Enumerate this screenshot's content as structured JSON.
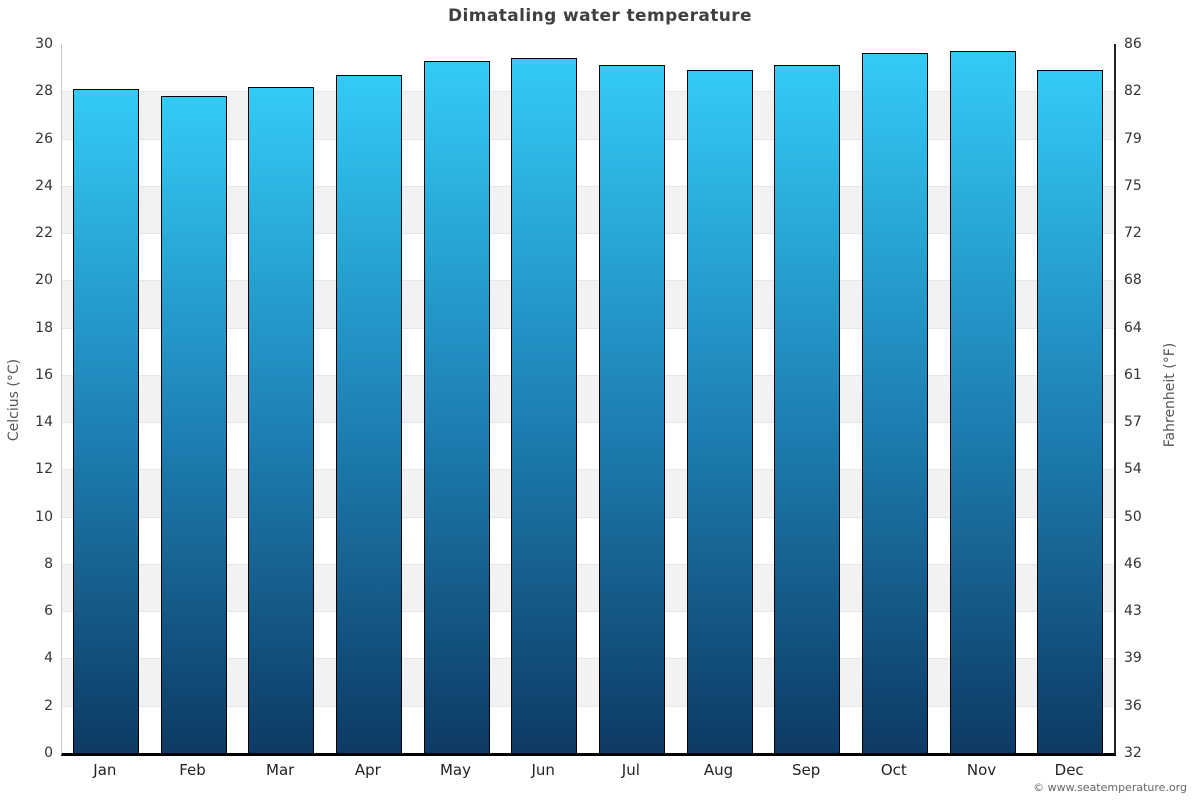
{
  "watermark": "© www.seatemperature.org",
  "chart_data": {
    "type": "bar",
    "title": "Dimataling water temperature",
    "categories": [
      "Jan",
      "Feb",
      "Mar",
      "Apr",
      "May",
      "Jun",
      "Jul",
      "Aug",
      "Sep",
      "Oct",
      "Nov",
      "Dec"
    ],
    "series": [
      {
        "name": "Water temperature",
        "unit": "°C",
        "values": [
          28.1,
          27.8,
          28.2,
          28.7,
          29.3,
          29.4,
          29.1,
          28.9,
          29.1,
          29.6,
          29.7,
          28.9
        ]
      }
    ],
    "ylabel_left": "Celcius (°C)",
    "ylabel_right": "Fahrenheit (°F)",
    "xlabel": "",
    "ylim": [
      0,
      30
    ],
    "ytick_step": 2,
    "yticks_left": [
      0,
      2,
      4,
      6,
      8,
      10,
      12,
      14,
      16,
      18,
      20,
      22,
      24,
      26,
      28,
      30
    ],
    "yticks_right_labels": [
      "32",
      "36",
      "39",
      "43",
      "46",
      "50",
      "54",
      "57",
      "61",
      "64",
      "68",
      "72",
      "75",
      "79",
      "82",
      "86"
    ],
    "grid": "horizontal alternating bands, no legend",
    "legend": "none",
    "colors": {
      "bar_gradient_top": "#33cbf5",
      "bar_gradient_mid": "#1e82b6",
      "bar_gradient_bottom": "#0d3a63",
      "bar_border": "#000000",
      "band_fill": "#f2f2f2",
      "gridline": "#e6e6e6",
      "axis_line_left": "#c9c9c9",
      "axis_line_right": "#222222",
      "axis_line_bottom": "#000000",
      "title_color": "#404040",
      "tick_label_color": "#333333",
      "axis_title_color": "#555555",
      "watermark_color": "#666666"
    }
  }
}
